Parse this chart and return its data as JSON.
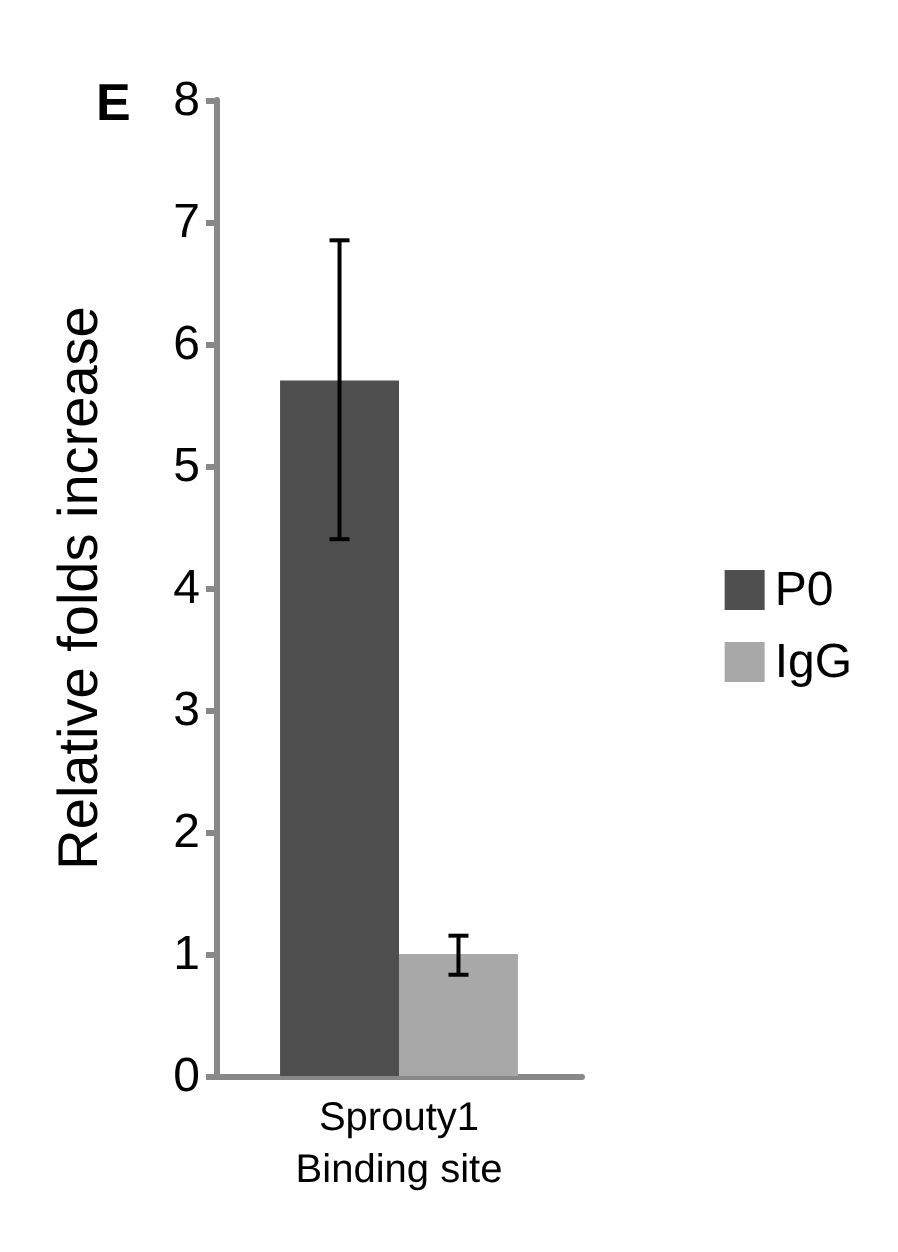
{
  "chart_data": {
    "type": "bar",
    "ylabel": "Relative folds increase",
    "annotations": [
      "E"
    ],
    "categories": [
      "Sprouty1\nBinding site"
    ],
    "series": [
      {
        "name": "P0",
        "color": "#4f4f4f",
        "values": [
          5.7
        ],
        "errors": [
          [
            4.4,
            6.85
          ]
        ]
      },
      {
        "name": "IgG",
        "color": "#a8a8a8",
        "values": [
          1.0
        ],
        "errors": [
          [
            0.83,
            1.15
          ]
        ]
      }
    ],
    "ylim": [
      0,
      8
    ],
    "yticks": [
      0,
      1,
      2,
      3,
      4,
      5,
      6,
      7,
      8
    ],
    "grid": false,
    "legend": "right"
  }
}
